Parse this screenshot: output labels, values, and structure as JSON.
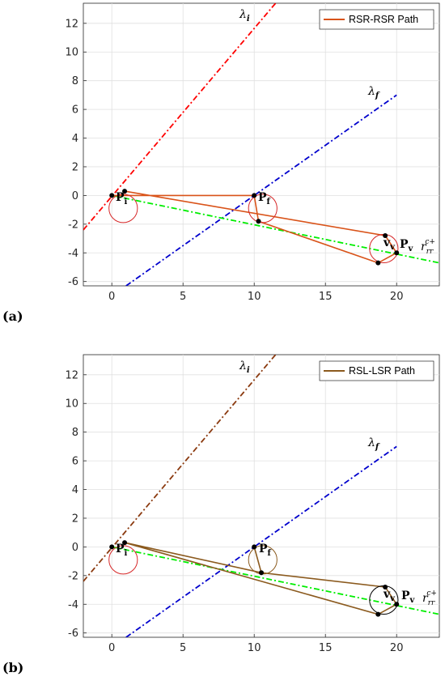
{
  "chart_data": [
    {
      "panel_label": "(a)",
      "type": "line",
      "legend": {
        "label": "RSR-RSR Path",
        "color": "#d95319",
        "placement": "top-right"
      },
      "xlim": [
        -2,
        23
      ],
      "ylim": [
        -6.3,
        13.4
      ],
      "x_ticks": [
        0,
        5,
        10,
        15,
        20
      ],
      "y_ticks": [
        -6,
        -4,
        -2,
        0,
        2,
        4,
        6,
        8,
        10,
        12
      ],
      "grid": true,
      "series": [
        {
          "role": "lambda_i",
          "color": "#ff0000",
          "style": "dash-dot",
          "x": [
            -2,
            11.5
          ],
          "y": [
            -2.4,
            13.4
          ]
        },
        {
          "role": "lambda_f",
          "color": "#0000cd",
          "style": "dash-dot",
          "x": [
            1,
            20
          ],
          "y": [
            -6.3,
            7
          ]
        },
        {
          "role": "green_reference",
          "color": "#00ee00",
          "style": "dash-dot",
          "x": [
            0,
            23
          ],
          "y": [
            0,
            -4.7
          ]
        },
        {
          "role": "path",
          "color": "#d95319",
          "style": "solid",
          "x": [
            0.9,
            19.2,
            20,
            18.7,
            10.3,
            10,
            0
          ],
          "y": [
            0.3,
            -2.8,
            -4.0,
            -4.7,
            -1.8,
            0,
            0
          ]
        }
      ],
      "circles": [
        {
          "x": 0.8,
          "y": -0.9,
          "r": 1.0,
          "color": "#d62728"
        },
        {
          "x": 10.6,
          "y": -0.9,
          "r": 1.0,
          "color": "#d62728"
        },
        {
          "x": 19.1,
          "y": -3.7,
          "r": 1.0,
          "color": "#d62728"
        }
      ],
      "points": [
        {
          "x": 0,
          "y": 0
        },
        {
          "x": 0.9,
          "y": 0.3
        },
        {
          "x": 10,
          "y": 0
        },
        {
          "x": 10.3,
          "y": -1.8
        },
        {
          "x": 19.2,
          "y": -2.8
        },
        {
          "x": 20,
          "y": -4.0
        },
        {
          "x": 18.7,
          "y": -4.7
        }
      ],
      "annotations": {
        "lambda_i": "λ",
        "lambda_i_sub": "i",
        "lambda_f": "λ",
        "lambda_f_sub": "f",
        "p_i": "P",
        "p_i_sub": "i",
        "p_f": "P",
        "p_f_sub": "f",
        "v_v": "v",
        "v_v_sub": "v",
        "p_v": "P",
        "p_v_sub": "v",
        "r": "r",
        "r_sup": "c+",
        "r_sub": "rr"
      }
    },
    {
      "panel_label": "(b)",
      "type": "line",
      "legend": {
        "label": "RSL-LSR Path",
        "color": "#8b5a1e",
        "placement": "top-right"
      },
      "xlim": [
        -2,
        23
      ],
      "ylim": [
        -6.3,
        13.4
      ],
      "x_ticks": [
        0,
        5,
        10,
        15,
        20
      ],
      "y_ticks": [
        -6,
        -4,
        -2,
        0,
        2,
        4,
        6,
        8,
        10,
        12
      ],
      "grid": true,
      "series": [
        {
          "role": "lambda_i",
          "color": "#8b3a0f",
          "style": "dash-dot",
          "x": [
            -2,
            11.5
          ],
          "y": [
            -2.4,
            13.4
          ]
        },
        {
          "role": "lambda_f",
          "color": "#0000cd",
          "style": "dash-dot",
          "x": [
            1,
            20
          ],
          "y": [
            -6.3,
            7
          ]
        },
        {
          "role": "green_reference",
          "color": "#00ee00",
          "style": "dash-dot",
          "x": [
            0,
            23
          ],
          "y": [
            0,
            -4.7
          ]
        },
        {
          "role": "path",
          "color": "#8b5a1e",
          "style": "solid",
          "x": [
            0.9,
            10.5,
            10,
            10.5,
            19.2,
            20,
            18.7,
            0.9
          ],
          "y": [
            0.3,
            -1.8,
            0,
            -1.8,
            -2.8,
            -4.0,
            -4.7,
            0.3
          ]
        }
      ],
      "circles": [
        {
          "x": 0.8,
          "y": -0.9,
          "r": 1.0,
          "color": "#d62728"
        },
        {
          "x": 10.6,
          "y": -0.9,
          "r": 1.0,
          "color": "#8b5a1e"
        },
        {
          "x": 19.1,
          "y": -3.7,
          "r": 1.0,
          "color": "#000000"
        }
      ],
      "points": [
        {
          "x": 0,
          "y": 0
        },
        {
          "x": 0.9,
          "y": 0.3
        },
        {
          "x": 10,
          "y": 0
        },
        {
          "x": 10.5,
          "y": -1.8
        },
        {
          "x": 19.2,
          "y": -2.8
        },
        {
          "x": 20,
          "y": -4.0
        },
        {
          "x": 18.7,
          "y": -4.7
        }
      ],
      "annotations": {
        "lambda_i": "λ",
        "lambda_i_sub": "i",
        "lambda_f": "λ",
        "lambda_f_sub": "f",
        "p_i": "P",
        "p_i_sub": "i",
        "p_f": "P",
        "p_f_sub": "f",
        "v_v": "v",
        "v_v_sub": "v",
        "p_v": "P",
        "p_v_sub": "v",
        "r": "r",
        "r_sup": "c+",
        "r_sub": "rr"
      }
    }
  ]
}
